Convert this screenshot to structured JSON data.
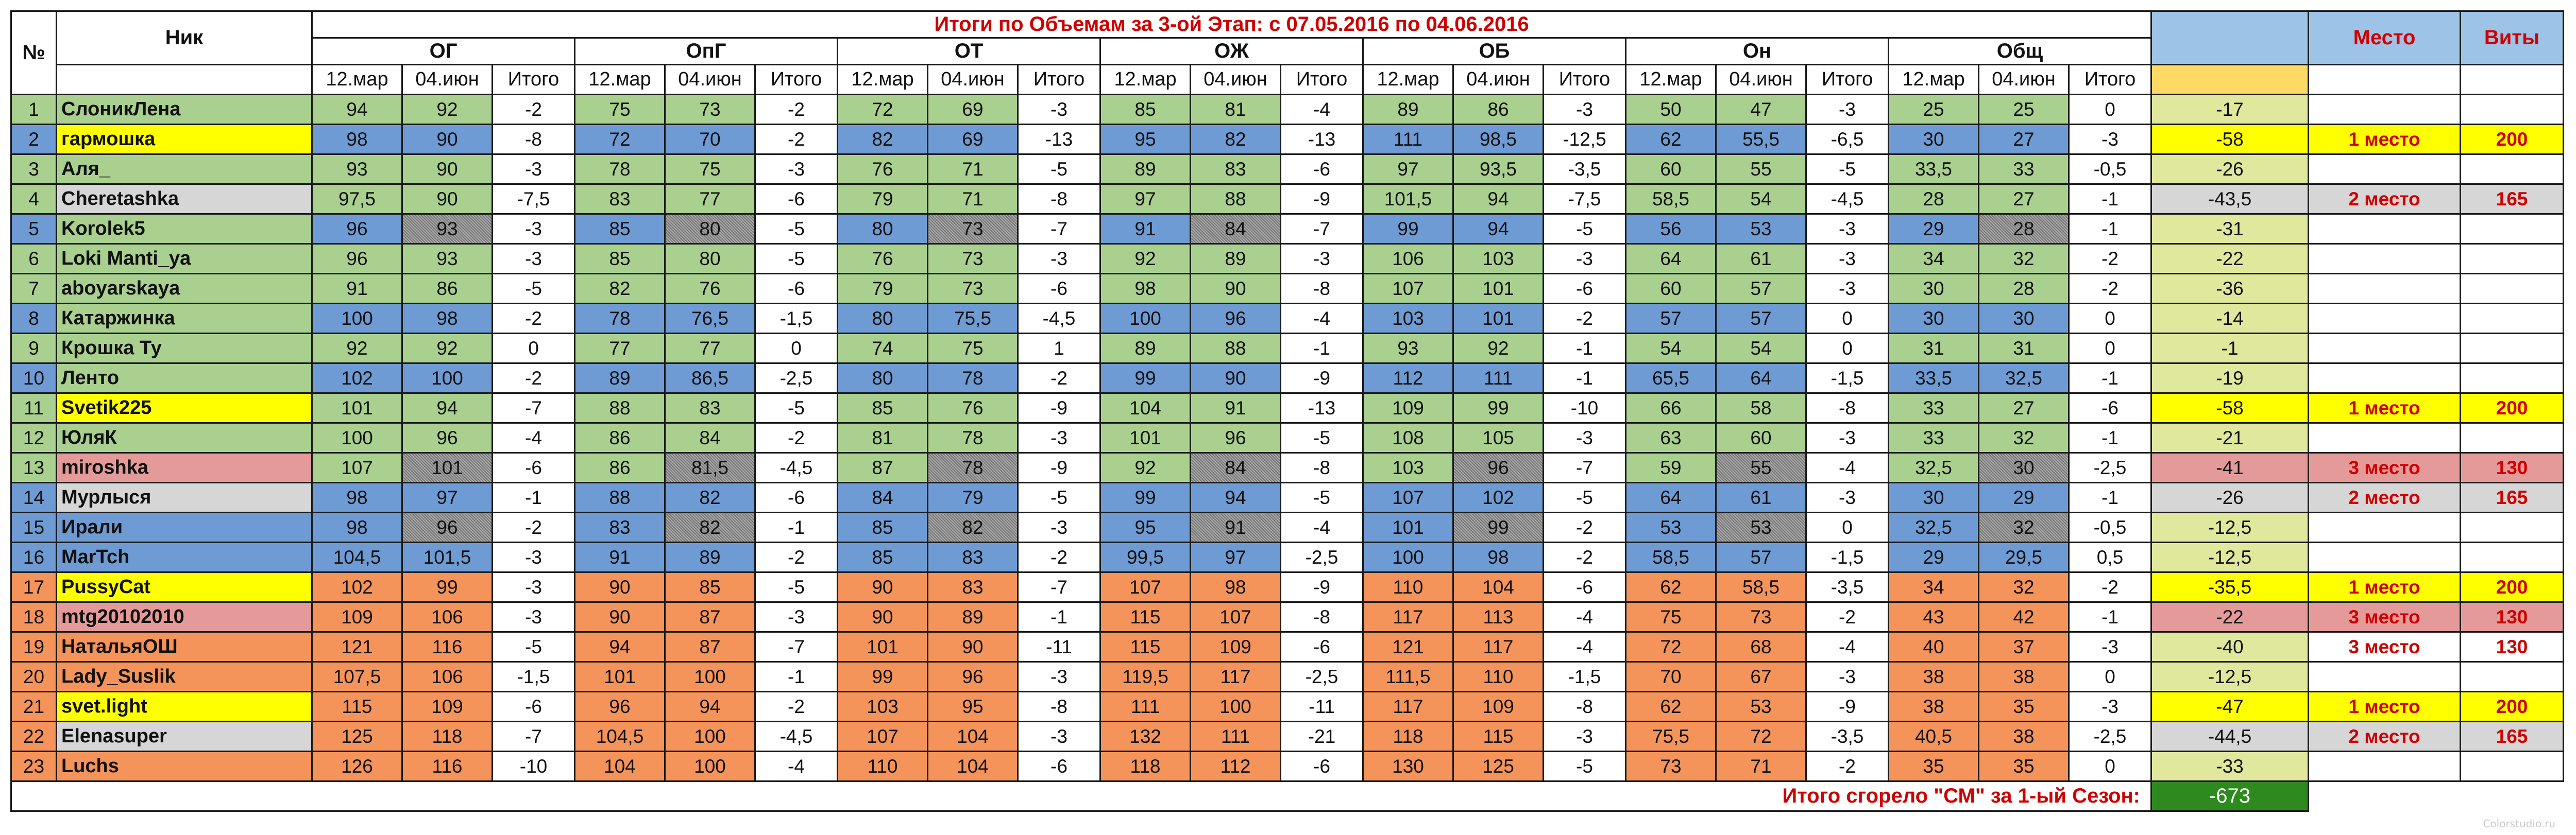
{
  "header": {
    "num_label": "№",
    "nick_label": "Ник",
    "title": "Итоги по Объемам за 3-ой Этап: с 07.05.2016 по 04.06.2016",
    "place_label": "Место",
    "vity_label": "Виты",
    "groups": [
      "ОГ",
      "ОпГ",
      "ОТ",
      "ОЖ",
      "ОБ",
      "Он",
      "Общ"
    ],
    "sub_labels": [
      "12.мар",
      "04.июн",
      "Итого"
    ]
  },
  "rows": [
    {
      "n": "1",
      "nick": "СлоникЛена",
      "v": [
        "94",
        "92",
        "-2",
        "75",
        "73",
        "-2",
        "72",
        "69",
        "-3",
        "85",
        "81",
        "-4",
        "89",
        "86",
        "-3",
        "50",
        "47",
        "-3",
        "25",
        "25",
        "0"
      ],
      "total": "-17",
      "place": "",
      "vity": "",
      "rc": "green",
      "rh": "green"
    },
    {
      "n": "2",
      "nick": "гармошка",
      "v": [
        "98",
        "90",
        "-8",
        "72",
        "70",
        "-2",
        "82",
        "69",
        "-13",
        "95",
        "82",
        "-13",
        "111",
        "98,5",
        "-12,5",
        "62",
        "55,5",
        "-6,5",
        "30",
        "27",
        "-3"
      ],
      "total": "-58",
      "place": "1 место",
      "vity": "200",
      "rc": "blue",
      "rh": "yellow"
    },
    {
      "n": "3",
      "nick": "Аля_",
      "v": [
        "93",
        "90",
        "-3",
        "78",
        "75",
        "-3",
        "76",
        "71",
        "-5",
        "89",
        "83",
        "-6",
        "97",
        "93,5",
        "-3,5",
        "60",
        "55",
        "-5",
        "33,5",
        "33",
        "-0,5"
      ],
      "total": "-26",
      "place": "",
      "vity": "",
      "rc": "green",
      "rh": "green"
    },
    {
      "n": "4",
      "nick": "Cheretashka",
      "v": [
        "97,5",
        "90",
        "-7,5",
        "83",
        "77",
        "-6",
        "79",
        "71",
        "-8",
        "97",
        "88",
        "-9",
        "101,5",
        "94",
        "-7,5",
        "58,5",
        "54",
        "-4,5",
        "28",
        "27",
        "-1"
      ],
      "total": "-43,5",
      "place": "2 место",
      "vity": "165",
      "rc": "green",
      "rh": "gray"
    },
    {
      "n": "5",
      "nick": "Korolek5",
      "v": [
        "96",
        "93",
        "-3",
        "85",
        "80",
        "-5",
        "80",
        "73",
        "-7",
        "91",
        "84",
        "-7",
        "99",
        "94",
        "-5",
        "56",
        "53",
        "-3",
        "29",
        "28",
        "-1"
      ],
      "total": "-31",
      "place": "",
      "vity": "",
      "rc": "blue",
      "rh": "green"
    },
    {
      "n": "6",
      "nick": "Loki Manti_ya",
      "v": [
        "96",
        "93",
        "-3",
        "85",
        "80",
        "-5",
        "76",
        "73",
        "-3",
        "92",
        "89",
        "-3",
        "106",
        "103",
        "-3",
        "64",
        "61",
        "-3",
        "34",
        "32",
        "-2"
      ],
      "total": "-22",
      "place": "",
      "vity": "",
      "rc": "green",
      "rh": "green"
    },
    {
      "n": "7",
      "nick": "aboyarskaya",
      "v": [
        "91",
        "86",
        "-5",
        "82",
        "76",
        "-6",
        "79",
        "73",
        "-6",
        "98",
        "90",
        "-8",
        "107",
        "101",
        "-6",
        "60",
        "57",
        "-3",
        "30",
        "28",
        "-2"
      ],
      "total": "-36",
      "place": "",
      "vity": "",
      "rc": "green",
      "rh": "green"
    },
    {
      "n": "8",
      "nick": "Катаржинка",
      "v": [
        "100",
        "98",
        "-2",
        "78",
        "76,5",
        "-1,5",
        "80",
        "75,5",
        "-4,5",
        "100",
        "96",
        "-4",
        "103",
        "101",
        "-2",
        "57",
        "57",
        "0",
        "30",
        "30",
        "0"
      ],
      "total": "-14",
      "place": "",
      "vity": "",
      "rc": "blue",
      "rh": "green"
    },
    {
      "n": "9",
      "nick": "Крошка Ту",
      "v": [
        "92",
        "92",
        "0",
        "77",
        "77",
        "0",
        "74",
        "75",
        "1",
        "89",
        "88",
        "-1",
        "93",
        "92",
        "-1",
        "54",
        "54",
        "0",
        "31",
        "31",
        "0"
      ],
      "total": "-1",
      "place": "",
      "vity": "",
      "rc": "green",
      "rh": "green"
    },
    {
      "n": "10",
      "nick": "Ленто",
      "v": [
        "102",
        "100",
        "-2",
        "89",
        "86,5",
        "-2,5",
        "80",
        "78",
        "-2",
        "99",
        "90",
        "-9",
        "112",
        "111",
        "-1",
        "65,5",
        "64",
        "-1,5",
        "33,5",
        "32,5",
        "-1"
      ],
      "total": "-19",
      "place": "",
      "vity": "",
      "rc": "blue",
      "rh": "green"
    },
    {
      "n": "11",
      "nick": "Svetik225",
      "v": [
        "101",
        "94",
        "-7",
        "88",
        "83",
        "-5",
        "85",
        "76",
        "-9",
        "104",
        "91",
        "-13",
        "109",
        "99",
        "-10",
        "66",
        "58",
        "-8",
        "33",
        "27",
        "-6"
      ],
      "total": "-58",
      "place": "1 место",
      "vity": "200",
      "rc": "green",
      "rh": "yellow"
    },
    {
      "n": "12",
      "nick": "ЮляК",
      "v": [
        "100",
        "96",
        "-4",
        "86",
        "84",
        "-2",
        "81",
        "78",
        "-3",
        "101",
        "96",
        "-5",
        "108",
        "105",
        "-3",
        "63",
        "60",
        "-3",
        "33",
        "32",
        "-1"
      ],
      "total": "-21",
      "place": "",
      "vity": "",
      "rc": "green",
      "rh": "green"
    },
    {
      "n": "13",
      "nick": "miroshka",
      "v": [
        "107",
        "101",
        "-6",
        "86",
        "81,5",
        "-4,5",
        "87",
        "78",
        "-9",
        "92",
        "84",
        "-8",
        "103",
        "96",
        "-7",
        "59",
        "55",
        "-4",
        "32,5",
        "30",
        "-2,5"
      ],
      "total": "-41",
      "place": "3 место",
      "vity": "130",
      "rc": "green",
      "rh": "pink"
    },
    {
      "n": "14",
      "nick": "Мурлыся",
      "v": [
        "98",
        "97",
        "-1",
        "88",
        "82",
        "-6",
        "84",
        "79",
        "-5",
        "99",
        "94",
        "-5",
        "107",
        "102",
        "-5",
        "64",
        "61",
        "-3",
        "30",
        "29",
        "-1"
      ],
      "total": "-26",
      "place": "2 место",
      "vity": "165",
      "rc": "blue",
      "rh": "gray"
    },
    {
      "n": "15",
      "nick": "Ирали",
      "v": [
        "98",
        "96",
        "-2",
        "83",
        "82",
        "-1",
        "85",
        "82",
        "-3",
        "95",
        "91",
        "-4",
        "101",
        "99",
        "-2",
        "53",
        "53",
        "0",
        "32,5",
        "32",
        "-0,5"
      ],
      "total": "-12,5",
      "place": "",
      "vity": "",
      "rc": "blue",
      "rh": "blue"
    },
    {
      "n": "16",
      "nick": "MarTch",
      "v": [
        "104,5",
        "101,5",
        "-3",
        "91",
        "89",
        "-2",
        "85",
        "83",
        "-2",
        "99,5",
        "97",
        "-2,5",
        "100",
        "98",
        "-2",
        "58,5",
        "57",
        "-1,5",
        "29",
        "29,5",
        "0,5"
      ],
      "total": "-12,5",
      "place": "",
      "vity": "",
      "rc": "blue",
      "rh": "blue"
    },
    {
      "n": "17",
      "nick": "PussyCat",
      "v": [
        "102",
        "99",
        "-3",
        "90",
        "85",
        "-5",
        "90",
        "83",
        "-7",
        "107",
        "98",
        "-9",
        "110",
        "104",
        "-6",
        "62",
        "58,5",
        "-3,5",
        "34",
        "32",
        "-2"
      ],
      "total": "-35,5",
      "place": "1 место",
      "vity": "200",
      "rc": "orange",
      "rh": "yellow"
    },
    {
      "n": "18",
      "nick": "mtg20102010",
      "v": [
        "109",
        "106",
        "-3",
        "90",
        "87",
        "-3",
        "90",
        "89",
        "-1",
        "115",
        "107",
        "-8",
        "117",
        "113",
        "-4",
        "75",
        "73",
        "-2",
        "43",
        "42",
        "-1"
      ],
      "total": "-22",
      "place": "3 место",
      "vity": "130",
      "rc": "orange",
      "rh": "pink"
    },
    {
      "n": "19",
      "nick": "НатальяОШ",
      "v": [
        "121",
        "116",
        "-5",
        "94",
        "87",
        "-7",
        "101",
        "90",
        "-11",
        "115",
        "109",
        "-6",
        "121",
        "117",
        "-4",
        "72",
        "68",
        "-4",
        "40",
        "37",
        "-3"
      ],
      "total": "-40",
      "place": "3 место",
      "vity": "130",
      "rc": "orange",
      "rh": "orange"
    },
    {
      "n": "20",
      "nick": "Lady_Suslik",
      "v": [
        "107,5",
        "106",
        "-1,5",
        "101",
        "100",
        "-1",
        "99",
        "96",
        "-3",
        "119,5",
        "117",
        "-2,5",
        "111,5",
        "110",
        "-1,5",
        "70",
        "67",
        "-3",
        "38",
        "38",
        "0"
      ],
      "total": "-12,5",
      "place": "",
      "vity": "",
      "rc": "orange",
      "rh": "orange"
    },
    {
      "n": "21",
      "nick": "svet.light",
      "v": [
        "115",
        "109",
        "-6",
        "96",
        "94",
        "-2",
        "103",
        "95",
        "-8",
        "111",
        "100",
        "-11",
        "117",
        "109",
        "-8",
        "62",
        "53",
        "-9",
        "38",
        "35",
        "-3"
      ],
      "total": "-47",
      "place": "1 место",
      "vity": "200",
      "rc": "orange",
      "rh": "yellow"
    },
    {
      "n": "22",
      "nick": "Elenasuper",
      "v": [
        "125",
        "118",
        "-7",
        "104,5",
        "100",
        "-4,5",
        "107",
        "104",
        "-3",
        "132",
        "111",
        "-21",
        "118",
        "115",
        "-3",
        "75,5",
        "72",
        "-3,5",
        "40,5",
        "38",
        "-2,5"
      ],
      "total": "-44,5",
      "place": "2 место",
      "vity": "165",
      "rc": "orange",
      "rh": "gray"
    },
    {
      "n": "23",
      "nick": "Luchs",
      "v": [
        "126",
        "116",
        "-10",
        "104",
        "100",
        "-4",
        "110",
        "104",
        "-6",
        "118",
        "112",
        "-6",
        "130",
        "125",
        "-5",
        "73",
        "71",
        "-2",
        "35",
        "35",
        "0"
      ],
      "total": "-33",
      "place": "",
      "vity": "",
      "rc": "orange",
      "rh": "orange"
    }
  ],
  "footer": {
    "label": "Итого сгорело \"СМ\" за 1-ый Сезон:",
    "value": "-673"
  },
  "watermark": "Colorstudio.ru",
  "colors": {
    "green": "#a9d08e",
    "blue": "#6f9bd4",
    "orange": "#f4935a",
    "yellow": "#ffff00",
    "pink": "#e59a9a",
    "gray": "#d6d6d6",
    "total_cell": "#dfe89c",
    "footer_total": "#2e8a1e",
    "header_accent": "#9dc3e6",
    "title_text": "#d00000"
  }
}
